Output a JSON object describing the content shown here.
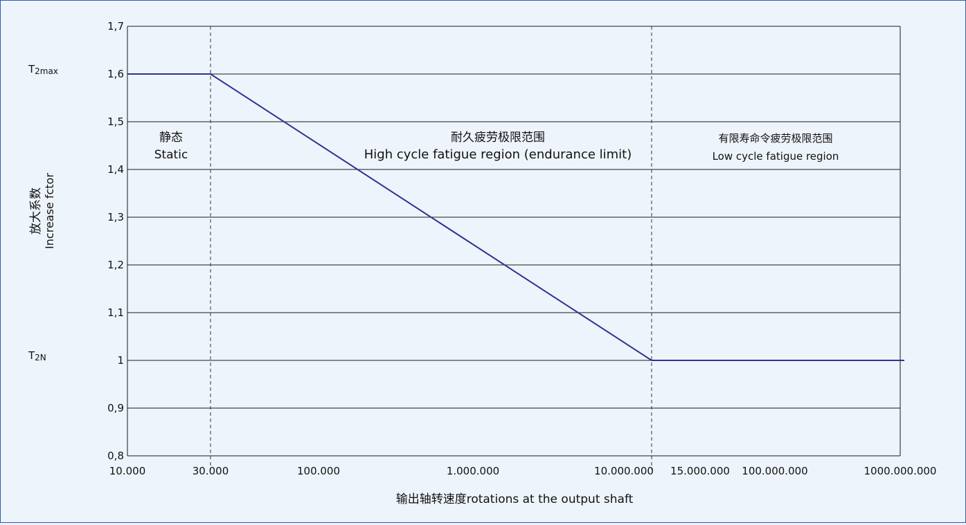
{
  "chart_data": {
    "type": "line",
    "title": "",
    "xlabel": "输出轴转速度rotations at the output shaft",
    "ylabel_cn": "放大系数",
    "ylabel_en": "Increase fctor",
    "ylim": [
      0.8,
      1.7
    ],
    "y_ticks": [
      "0,8",
      "0,9",
      "1",
      "1,1",
      "1,2",
      "1,3",
      "1,4",
      "1,5",
      "1,6",
      "1,7"
    ],
    "x_ticks": [
      "10.000",
      "30.000",
      "100.000",
      "1.000.000",
      "10.000.000",
      "15.000.000",
      "100.000.000",
      "1000.000.000"
    ],
    "y_side_labels": [
      {
        "main": "T",
        "sub": "2max",
        "at": 1.6
      },
      {
        "main": "T",
        "sub": "2N",
        "at": 1.0
      }
    ],
    "vlines_at": [
      "30.000",
      "15.000.000"
    ],
    "regions": [
      {
        "cn": "静态",
        "en": "Static"
      },
      {
        "cn": "耐久疲劳极限范围",
        "en": "High cycle fatigue region (endurance limit)"
      },
      {
        "cn": "有限寿命令疲劳极限范围",
        "en": "Low cycle fatigue region"
      }
    ],
    "series": [
      {
        "x": [
          "10.000",
          "30.000",
          "15.000.000",
          "1000.000.000"
        ],
        "y": [
          1.6,
          1.6,
          1.0,
          1.0
        ]
      }
    ],
    "grid": true,
    "colors": {
      "line": "#2e3192",
      "grid": "#1a1a1a",
      "frame": "#2a5ea8",
      "background": "#eef4fb"
    }
  }
}
